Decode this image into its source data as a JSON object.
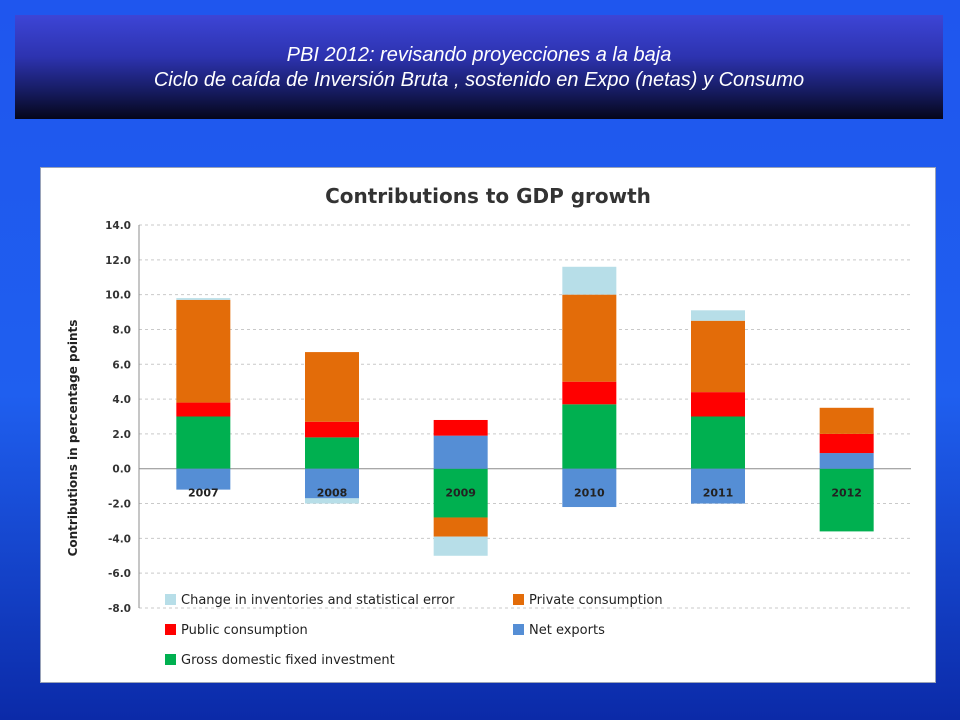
{
  "banner": {
    "line1": "PBI 2012: revisando proyecciones a la baja",
    "line2": "Ciclo de caída de Inversión Bruta , sostenido en Expo (netas) y Consumo"
  },
  "chart_data": {
    "type": "bar",
    "stacked": true,
    "title": "Contributions to GDP growth",
    "ylabel": "Contributions  in percentage points",
    "xlabel": "",
    "ylim": [
      -8.0,
      14.0
    ],
    "yticks": [
      "14.0",
      "12.0",
      "10.0",
      "8.0",
      "6.0",
      "4.0",
      "2.0",
      "0.0",
      "-2.0",
      "-4.0",
      "-6.0",
      "-8.0"
    ],
    "grid": true,
    "legend_position": "bottom",
    "categories": [
      "2007",
      "2008",
      "2009",
      "2010",
      "2011",
      "2012"
    ],
    "series": [
      {
        "name": "Gross domestic fixed investment",
        "color": "#00b050",
        "values": [
          3.0,
          1.8,
          -2.8,
          3.7,
          3.0,
          -3.6
        ]
      },
      {
        "name": "Net exports",
        "color": "#558ed5",
        "values": [
          -1.2,
          -1.7,
          1.9,
          -2.2,
          -2.0,
          0.9
        ]
      },
      {
        "name": "Public consumption",
        "color": "#ff0000",
        "values": [
          0.8,
          0.9,
          0.9,
          1.3,
          1.4,
          1.1
        ]
      },
      {
        "name": "Private consumption",
        "color": "#e36c09",
        "values": [
          5.9,
          4.0,
          -1.1,
          5.0,
          4.1,
          1.5
        ]
      },
      {
        "name": "Change in inventories and statistical error",
        "color": "#b7dee8",
        "values": [
          0.1,
          -0.3,
          -1.1,
          1.6,
          0.6,
          0.0
        ]
      }
    ],
    "legend_order": [
      "Change in inventories and statistical error",
      "Private consumption",
      "Public consumption",
      "Net exports",
      "Gross domestic fixed investment"
    ]
  }
}
